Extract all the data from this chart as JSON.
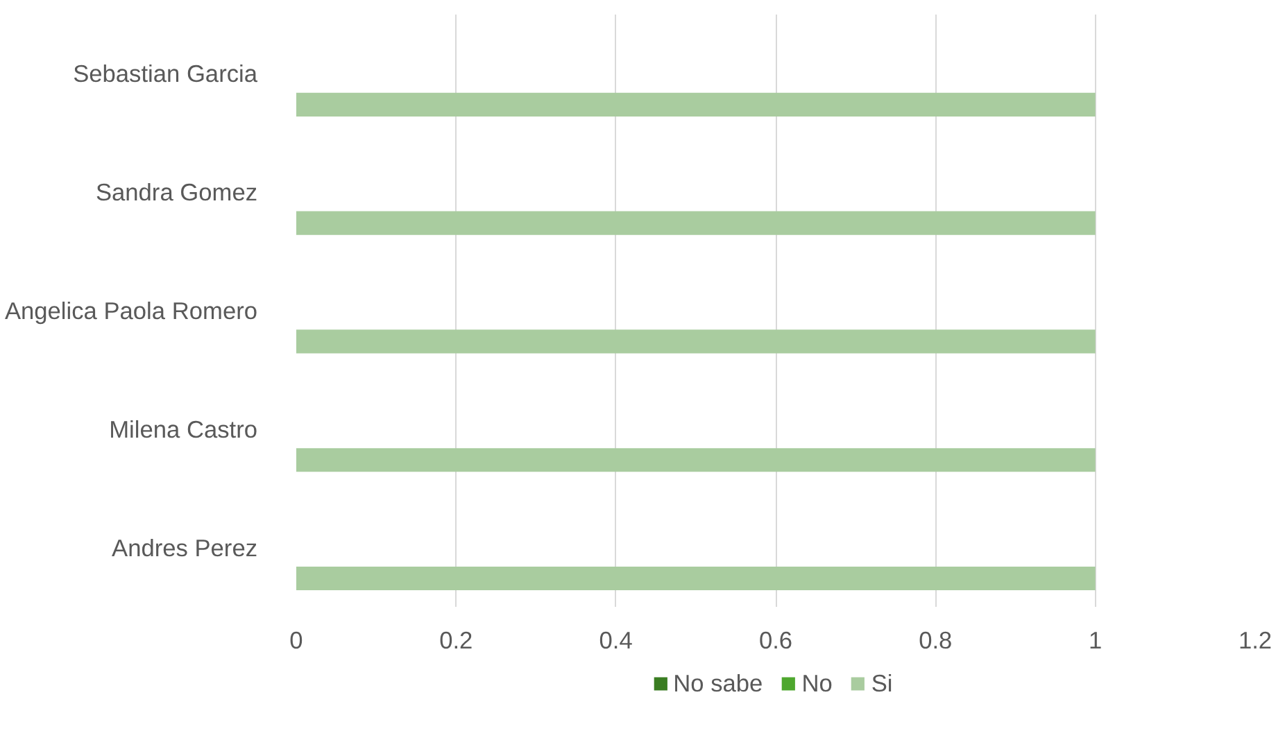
{
  "chart_data": {
    "type": "bar",
    "orientation": "horizontal",
    "categories": [
      "Sebastian Garcia",
      "Sandra Gomez",
      "Angelica Paola Romero",
      "Milena Castro",
      "Andres Perez"
    ],
    "series": [
      {
        "name": "No sabe",
        "color": "#3a7d22",
        "values": [
          0,
          0,
          0,
          0,
          0
        ]
      },
      {
        "name": "No",
        "color": "#4ea72e",
        "values": [
          0,
          0,
          0,
          0,
          0
        ]
      },
      {
        "name": "Si",
        "color": "#a9cc9f",
        "values": [
          1,
          1,
          1,
          1,
          1
        ]
      }
    ],
    "xlim": [
      0,
      1.2
    ],
    "xticks": [
      0,
      0.2,
      0.4,
      0.6,
      0.8,
      1,
      1.2
    ],
    "grid": "x",
    "legend": "bottom"
  }
}
